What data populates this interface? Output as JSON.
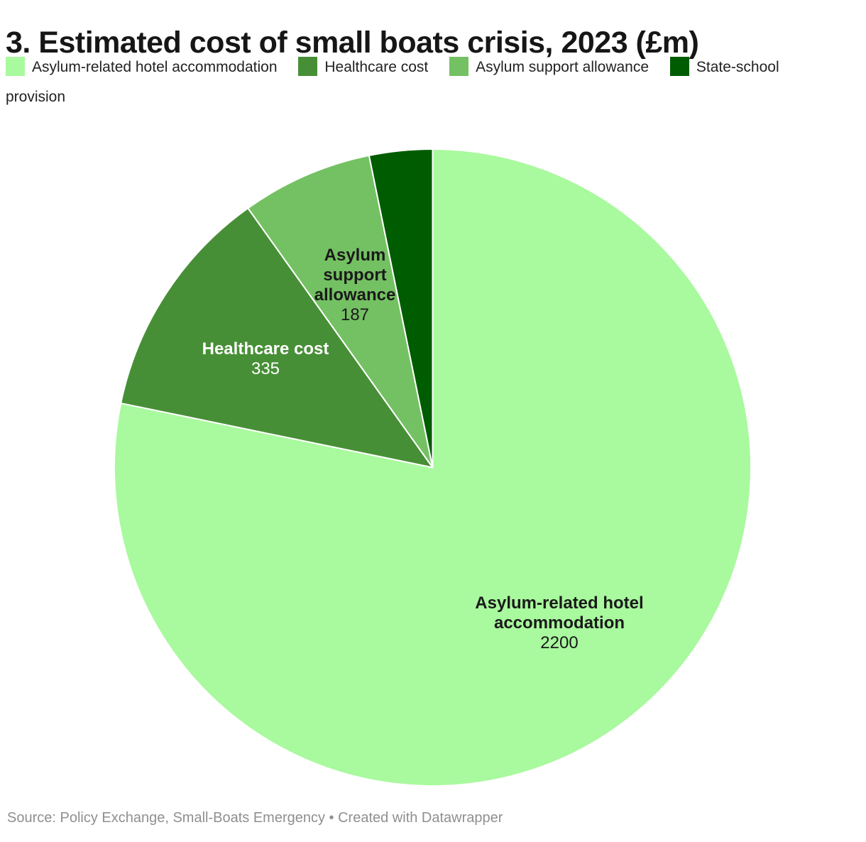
{
  "title": "3. Estimated cost of small boats crisis, 2023 (£m)",
  "legend": {
    "items": [
      {
        "label": "Asylum-related hotel accommodation",
        "color": "#a9f99e"
      },
      {
        "label": "Healthcare cost",
        "color": "#478f36"
      },
      {
        "label": "Asylum support allowance",
        "color": "#74c163"
      },
      {
        "label": "State-school provision",
        "color": "#005c00"
      }
    ]
  },
  "chart_data": {
    "type": "pie",
    "title": "3. Estimated cost of small boats crisis, 2023 (£m)",
    "unit": "£m",
    "categories": [
      "Asylum-related hotel accommodation",
      "Healthcare cost",
      "Asylum support allowance",
      "State-school provision"
    ],
    "values": [
      2200,
      335,
      187,
      90
    ],
    "colors": [
      "#a9f99e",
      "#478f36",
      "#74c163",
      "#005c00"
    ],
    "start_angle_deg": 0,
    "direction": "clockwise",
    "slice_stroke": "#ffffff",
    "legend_position": "top",
    "slice_labels": [
      {
        "name": "Asylum-related hotel accommodation",
        "value": "2200",
        "text_color": "#1a1a1a"
      },
      {
        "name": "Healthcare cost",
        "value": "335",
        "text_color": "#ffffff"
      },
      {
        "name": "Asylum support allowance",
        "value": "187",
        "text_color": "#1a1a1a"
      }
    ]
  },
  "footer": {
    "source_note": "Source: Policy Exchange, Small-Boats Emergency • Created with Datawrapper"
  }
}
